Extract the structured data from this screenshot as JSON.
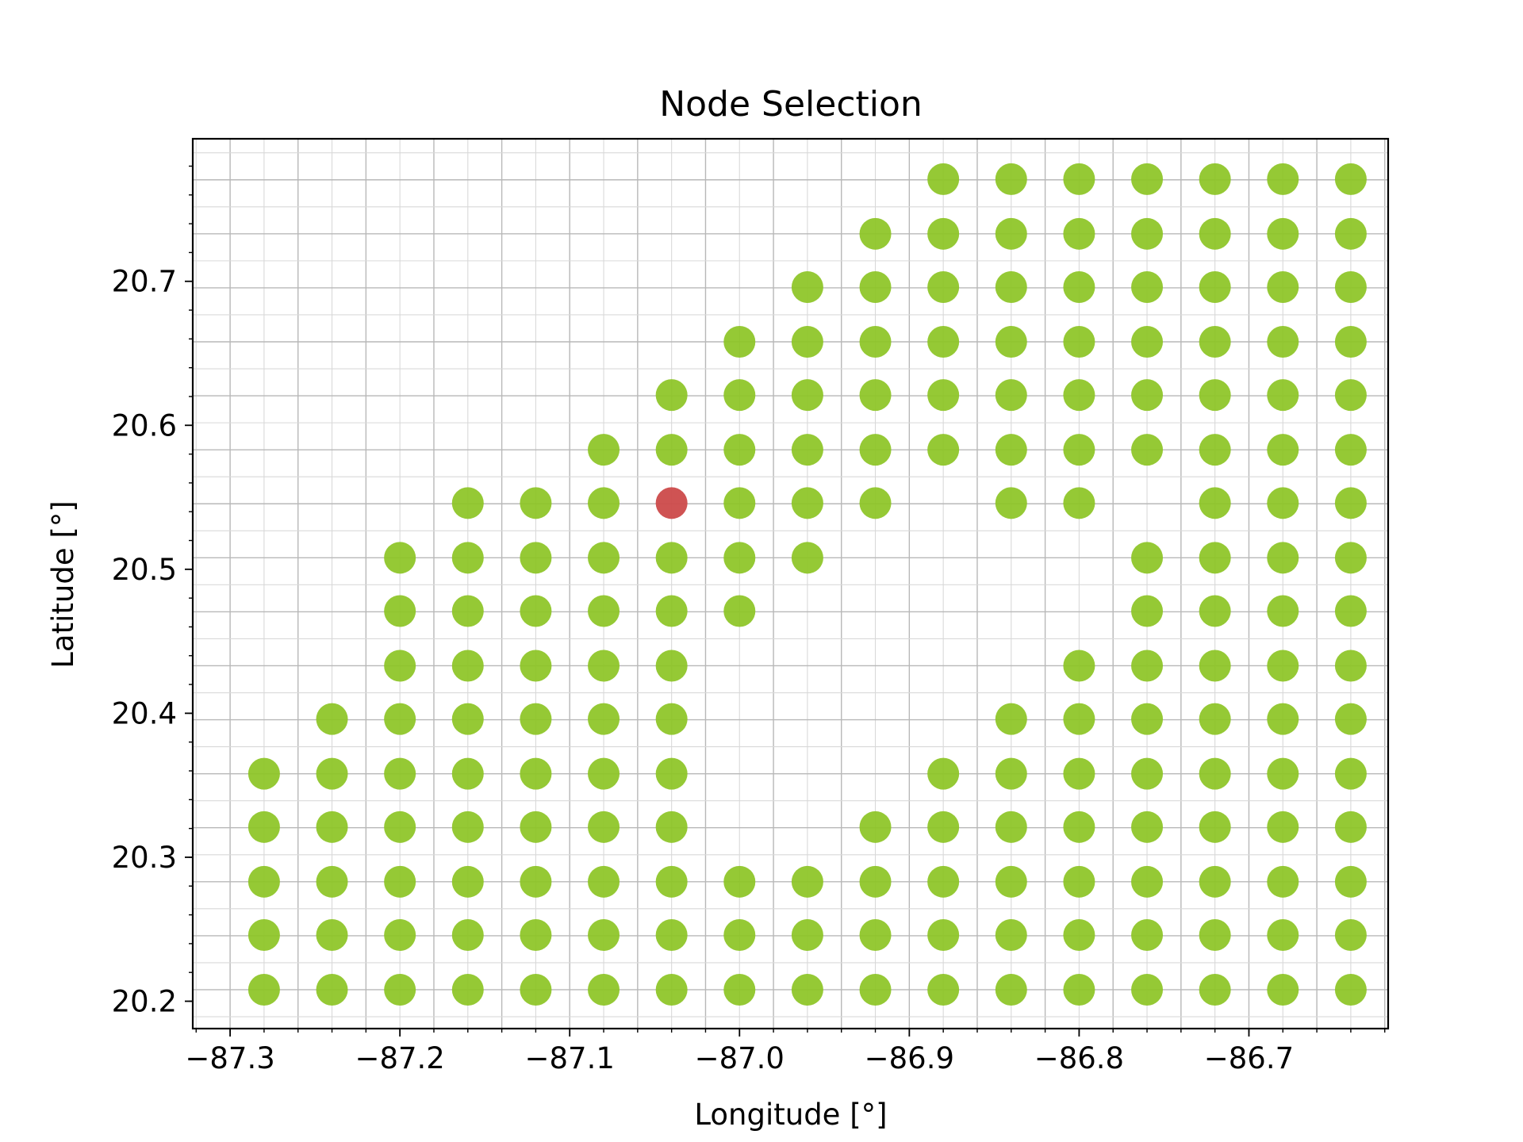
{
  "chart_data": {
    "type": "scatter",
    "title": "Node Selection",
    "xlabel": "Longitude [°]",
    "ylabel": "Latitude [°]",
    "xlim": [
      -87.322,
      -86.618
    ],
    "ylim": [
      20.181,
      20.799
    ],
    "xticks": [
      -87.3,
      -87.2,
      -87.1,
      -87.0,
      -86.9,
      -86.8,
      -86.7
    ],
    "xtick_labels": [
      "−87.3",
      "−87.2",
      "−87.1",
      "−87.0",
      "−86.9",
      "−86.8",
      "−86.7"
    ],
    "yticks": [
      20.2,
      20.3,
      20.4,
      20.5,
      20.6,
      20.7
    ],
    "ytick_labels": [
      "20.2",
      "20.3",
      "20.4",
      "20.5",
      "20.6",
      "20.7"
    ],
    "grid": true,
    "minor_grid": true,
    "grid_x0": -87.3,
    "grid_lat0": 20.208,
    "grid_dlon": 0.04,
    "grid_dlat": 0.0375,
    "colors": {
      "nodes": "#8cc424",
      "selected": "#cc4a4a"
    },
    "rows": [
      {
        "lat": 20.208,
        "lons": [
          -87.28,
          -87.24,
          -87.2,
          -87.16,
          -87.12,
          -87.08,
          -87.04,
          -87.0,
          -86.96,
          -86.92,
          -86.88,
          -86.84,
          -86.8,
          -86.76,
          -86.72,
          -86.68,
          -86.64
        ]
      },
      {
        "lat": 20.246,
        "lons": [
          -87.28,
          -87.24,
          -87.2,
          -87.16,
          -87.12,
          -87.08,
          -87.04,
          -87.0,
          -86.96,
          -86.92,
          -86.88,
          -86.84,
          -86.8,
          -86.76,
          -86.72,
          -86.68,
          -86.64
        ]
      },
      {
        "lat": 20.283,
        "lons": [
          -87.28,
          -87.24,
          -87.2,
          -87.16,
          -87.12,
          -87.08,
          -87.04,
          -87.0,
          -86.96,
          -86.92,
          -86.88,
          -86.84,
          -86.8,
          -86.76,
          -86.72,
          -86.68,
          -86.64
        ]
      },
      {
        "lat": 20.321,
        "lons": [
          -87.28,
          -87.24,
          -87.2,
          -87.16,
          -87.12,
          -87.08,
          -87.04,
          -86.92,
          -86.88,
          -86.84,
          -86.8,
          -86.76,
          -86.72,
          -86.68,
          -86.64
        ]
      },
      {
        "lat": 20.358,
        "lons": [
          -87.28,
          -87.24,
          -87.2,
          -87.16,
          -87.12,
          -87.08,
          -87.04,
          -86.88,
          -86.84,
          -86.8,
          -86.76,
          -86.72,
          -86.68,
          -86.64
        ]
      },
      {
        "lat": 20.396,
        "lons": [
          -87.24,
          -87.2,
          -87.16,
          -87.12,
          -87.08,
          -87.04,
          -86.84,
          -86.8,
          -86.76,
          -86.72,
          -86.68,
          -86.64
        ]
      },
      {
        "lat": 20.433,
        "lons": [
          -87.2,
          -87.16,
          -87.12,
          -87.08,
          -87.04,
          -86.8,
          -86.76,
          -86.72,
          -86.68,
          -86.64
        ]
      },
      {
        "lat": 20.471,
        "lons": [
          -87.2,
          -87.16,
          -87.12,
          -87.08,
          -87.04,
          -87.0,
          -86.76,
          -86.72,
          -86.68,
          -86.64
        ]
      },
      {
        "lat": 20.508,
        "lons": [
          -87.2,
          -87.16,
          -87.12,
          -87.08,
          -87.04,
          -87.0,
          -86.96,
          -86.76,
          -86.72,
          -86.68,
          -86.64
        ]
      },
      {
        "lat": 20.546,
        "lons": [
          -87.16,
          -87.12,
          -87.08,
          -87.0,
          -86.96,
          -86.92,
          -86.84,
          -86.8,
          -86.72,
          -86.68,
          -86.64
        ]
      },
      {
        "lat": 20.583,
        "lons": [
          -87.08,
          -87.04,
          -87.0,
          -86.96,
          -86.92,
          -86.88,
          -86.84,
          -86.8,
          -86.76,
          -86.72,
          -86.68,
          -86.64
        ]
      },
      {
        "lat": 20.621,
        "lons": [
          -87.04,
          -87.0,
          -86.96,
          -86.92,
          -86.88,
          -86.84,
          -86.8,
          -86.76,
          -86.72,
          -86.68,
          -86.64
        ]
      },
      {
        "lat": 20.658,
        "lons": [
          -87.0,
          -86.96,
          -86.92,
          -86.88,
          -86.84,
          -86.8,
          -86.76,
          -86.72,
          -86.68,
          -86.64
        ]
      },
      {
        "lat": 20.696,
        "lons": [
          -86.96,
          -86.92,
          -86.88,
          -86.84,
          -86.8,
          -86.76,
          -86.72,
          -86.68,
          -86.64
        ]
      },
      {
        "lat": 20.733,
        "lons": [
          -86.92,
          -86.88,
          -86.84,
          -86.8,
          -86.76,
          -86.72,
          -86.68,
          -86.64
        ]
      },
      {
        "lat": 20.771,
        "lons": [
          -86.88,
          -86.84,
          -86.8,
          -86.76,
          -86.72,
          -86.68,
          -86.64
        ]
      }
    ],
    "selected": {
      "lon": -87.04,
      "lat": 20.546
    }
  }
}
